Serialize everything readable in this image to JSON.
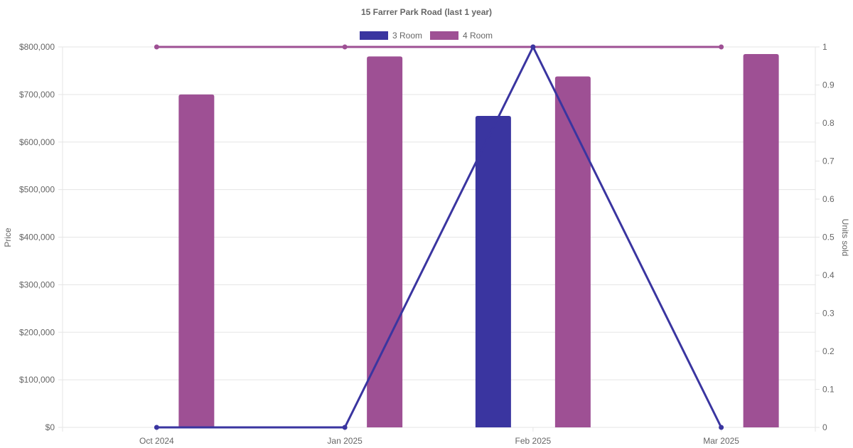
{
  "chart_data": {
    "type": "bar",
    "title": "15 Farrer Park Road (last 1 year)",
    "categories": [
      "Oct 2024",
      "Jan 2025",
      "Feb 2025",
      "Mar 2025"
    ],
    "ylabel": "Price",
    "y2label": "Units sold",
    "ylim": [
      0,
      800000
    ],
    "y2lim": [
      0,
      1
    ],
    "yticks": [
      "$0",
      "$100,000",
      "$200,000",
      "$300,000",
      "$400,000",
      "$500,000",
      "$600,000",
      "$700,000",
      "$800,000"
    ],
    "y2ticks": [
      "0",
      "0.1",
      "0.2",
      "0.3",
      "0.4",
      "0.5",
      "0.6",
      "0.7",
      "0.8",
      "0.9",
      "1"
    ],
    "grid": true,
    "legend_position": "top",
    "series": [
      {
        "name": "3 Room",
        "color": "#3a35a0",
        "price": [
          null,
          null,
          655000,
          null
        ],
        "units_sold": [
          0,
          0,
          1,
          0
        ]
      },
      {
        "name": "4 Room",
        "color": "#9e5094",
        "price": [
          700000,
          780000,
          738000,
          785000
        ],
        "units_sold": [
          1,
          1,
          1,
          1
        ]
      }
    ]
  }
}
